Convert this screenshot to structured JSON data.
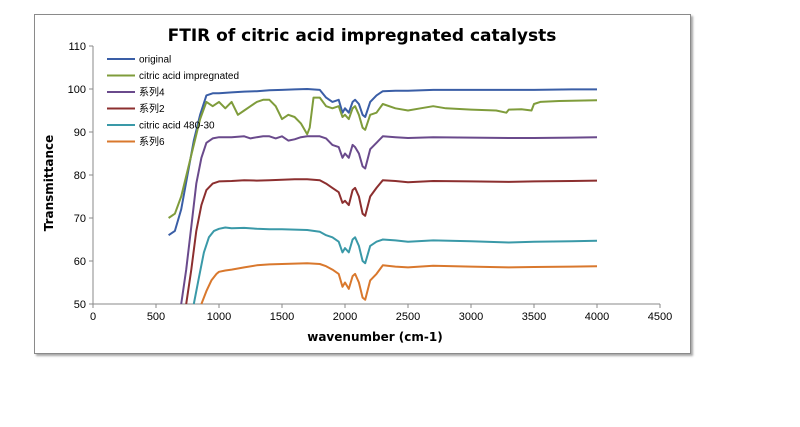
{
  "chart_data": {
    "type": "line",
    "title": "FTIR of citric acid impregnated catalysts",
    "xlabel": "wavenumber (cm-1)",
    "ylabel": "Transmittance",
    "xlim": [
      0,
      4500
    ],
    "ylim": [
      50,
      110
    ],
    "xticks": [
      0,
      500,
      1000,
      1500,
      2000,
      2500,
      3000,
      3500,
      4000,
      4500
    ],
    "yticks": [
      50,
      60,
      70,
      80,
      90,
      100,
      110
    ],
    "grid": false,
    "legend": "top-left",
    "series": [
      {
        "name": "original",
        "color": "#3a5ea6",
        "x": [
          600,
          650,
          700,
          750,
          800,
          850,
          900,
          950,
          1000,
          1100,
          1200,
          1300,
          1400,
          1500,
          1600,
          1700,
          1800,
          1850,
          1900,
          1950,
          1980,
          2000,
          2030,
          2060,
          2080,
          2110,
          2140,
          2160,
          2200,
          2250,
          2300,
          2400,
          2500,
          2700,
          3000,
          3300,
          3500,
          3800,
          4000
        ],
        "y": [
          66,
          67,
          72,
          80,
          88,
          94,
          98.5,
          99,
          99,
          99.2,
          99.4,
          99.5,
          99.7,
          99.8,
          99.9,
          100,
          99.8,
          98,
          97,
          97.5,
          94.5,
          95.5,
          94.5,
          97,
          97.5,
          96.5,
          94,
          93.5,
          97,
          98.5,
          99.5,
          99.6,
          99.6,
          99.8,
          99.8,
          99.8,
          99.8,
          99.9,
          99.9
        ]
      },
      {
        "name": "citric acid impregnated",
        "color": "#7f9c3b",
        "x": [
          600,
          650,
          700,
          750,
          800,
          850,
          900,
          950,
          1000,
          1050,
          1100,
          1150,
          1200,
          1250,
          1300,
          1350,
          1400,
          1450,
          1500,
          1550,
          1600,
          1650,
          1700,
          1720,
          1750,
          1800,
          1850,
          1900,
          1950,
          1980,
          2000,
          2030,
          2060,
          2080,
          2110,
          2140,
          2160,
          2200,
          2250,
          2300,
          2400,
          2500,
          2600,
          2700,
          2800,
          3000,
          3200,
          3280,
          3300,
          3400,
          3480,
          3500,
          3550,
          3700,
          4000
        ],
        "y": [
          70,
          71,
          75,
          81,
          87,
          93,
          97,
          96,
          97,
          95.5,
          97,
          94,
          95,
          96,
          97,
          97.5,
          97.5,
          96,
          93,
          94,
          93.5,
          92,
          89.5,
          91,
          98,
          98,
          96,
          95.5,
          96,
          93.5,
          94,
          93,
          95.5,
          96,
          94,
          91,
          90.5,
          94,
          94.5,
          96.5,
          95.5,
          95,
          95.5,
          96,
          95.5,
          95.2,
          95,
          94.5,
          95.2,
          95.3,
          95,
          96.5,
          97,
          97.2,
          97.4
        ]
      },
      {
        "name": "系列4",
        "color": "#6a4a8c",
        "x": [
          700,
          740,
          780,
          820,
          860,
          900,
          950,
          1000,
          1100,
          1200,
          1250,
          1300,
          1350,
          1400,
          1450,
          1500,
          1550,
          1600,
          1650,
          1700,
          1750,
          1800,
          1850,
          1900,
          1950,
          1980,
          2000,
          2030,
          2060,
          2080,
          2110,
          2140,
          2160,
          2200,
          2250,
          2300,
          2400,
          2500,
          2700,
          3000,
          3300,
          3500,
          3800,
          4000
        ],
        "y": [
          50,
          58,
          68,
          78,
          84,
          87.5,
          88.5,
          88.8,
          88.8,
          89,
          88.5,
          88.8,
          89,
          89,
          88.5,
          89,
          88,
          88.3,
          88.8,
          89,
          89,
          89,
          88.5,
          87,
          86.5,
          84,
          85,
          84,
          87,
          86.5,
          85,
          82,
          81.5,
          86,
          87.5,
          89,
          88.8,
          88.6,
          88.8,
          88.7,
          88.6,
          88.6,
          88.7,
          88.8
        ]
      },
      {
        "name": "系列2",
        "color": "#8c2f2f",
        "x": [
          740,
          780,
          820,
          860,
          900,
          950,
          1000,
          1100,
          1200,
          1300,
          1400,
          1500,
          1600,
          1700,
          1800,
          1850,
          1900,
          1950,
          1980,
          2000,
          2030,
          2060,
          2080,
          2110,
          2140,
          2160,
          2200,
          2250,
          2300,
          2400,
          2500,
          2700,
          3000,
          3300,
          3500,
          3800,
          4000
        ],
        "y": [
          50,
          58,
          67,
          73,
          76.5,
          78,
          78.5,
          78.6,
          78.8,
          78.7,
          78.8,
          78.9,
          79,
          79,
          78.8,
          78,
          77,
          76,
          73.5,
          74,
          73,
          76.5,
          77,
          75,
          71,
          70.5,
          75,
          77,
          78.8,
          78.6,
          78.3,
          78.6,
          78.5,
          78.4,
          78.5,
          78.6,
          78.7
        ]
      },
      {
        "name": "citric acid 480-30",
        "color": "#3a99a8",
        "x": [
          800,
          840,
          880,
          920,
          960,
          1000,
          1050,
          1100,
          1200,
          1300,
          1400,
          1500,
          1600,
          1700,
          1800,
          1850,
          1900,
          1950,
          1980,
          2000,
          2030,
          2060,
          2080,
          2110,
          2140,
          2160,
          2200,
          2250,
          2300,
          2400,
          2500,
          2700,
          3000,
          3300,
          3500,
          3800,
          4000
        ],
        "y": [
          50,
          56,
          62,
          65.5,
          67,
          67.5,
          67.8,
          67.6,
          67.7,
          67.5,
          67.4,
          67.4,
          67.3,
          67.2,
          66.8,
          66,
          65.5,
          64.5,
          62,
          63,
          62,
          65,
          65.5,
          63.5,
          60,
          59.5,
          63.5,
          64.5,
          65,
          64.8,
          64.5,
          64.8,
          64.6,
          64.3,
          64.5,
          64.6,
          64.7
        ]
      },
      {
        "name": "系列6",
        "color": "#d9782d",
        "x": [
          860,
          900,
          940,
          980,
          1000,
          1050,
          1100,
          1200,
          1300,
          1400,
          1500,
          1600,
          1700,
          1800,
          1850,
          1900,
          1950,
          1980,
          2000,
          2030,
          2060,
          2080,
          2110,
          2140,
          2160,
          2200,
          2250,
          2300,
          2400,
          2500,
          2700,
          3000,
          3300,
          3500,
          3800,
          4000
        ],
        "y": [
          50,
          53,
          55.5,
          57,
          57.5,
          57.8,
          58,
          58.5,
          59,
          59.2,
          59.3,
          59.4,
          59.5,
          59.3,
          58.8,
          58,
          57,
          54,
          55,
          53.5,
          56.5,
          57,
          55,
          51.5,
          51,
          55.5,
          57,
          59,
          58.7,
          58.5,
          58.9,
          58.7,
          58.5,
          58.6,
          58.7,
          58.8
        ]
      }
    ]
  }
}
